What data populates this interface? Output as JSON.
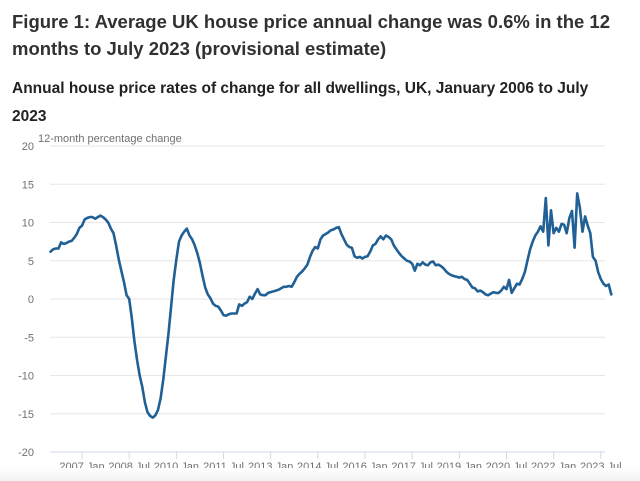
{
  "header": {
    "title": "Figure 1: Average UK house price annual change was 0.6% in the 12 months to July 2023 (provisional estimate)",
    "subtitle": "Annual house price rates of change for all dwellings, UK, January 2006 to July 2023"
  },
  "colors": {
    "line": "#206095",
    "grid": "#e6e6e6",
    "axis": "#cfd8ea",
    "tick_text": "#707071"
  },
  "chart_data": {
    "type": "line",
    "title": "Annual house price rates of change for all dwellings, UK, January 2006 to July 2023",
    "xlabel": "",
    "ylabel": "12-month percentage change",
    "ylim": [
      -20,
      20
    ],
    "yticks": [
      20,
      15,
      10,
      5,
      0,
      -5,
      -10,
      -15,
      -20
    ],
    "ytick_labels": [
      "20",
      "15",
      "10",
      "5",
      "0",
      "-5",
      "-10",
      "-15",
      "-20"
    ],
    "xtick_labels": [
      "2007 Jan",
      "2008 Jul",
      "2010 Jan",
      "2011 Jul",
      "2013 Jan",
      "2014 Jul",
      "2016 Jan",
      "2017 Jul",
      "2019 Jan",
      "2020 Jul",
      "2022 Jan",
      "2023 Jul"
    ],
    "xtick_month_index": [
      12,
      30,
      48,
      66,
      84,
      102,
      120,
      138,
      156,
      174,
      192,
      210
    ],
    "x_start": "2006 Jan",
    "x_end": "2023 Jul",
    "grid": true,
    "legend": "none",
    "series": [
      {
        "name": "12-month percentage change",
        "values": [
          6.2,
          6.5,
          6.6,
          6.6,
          7.4,
          7.2,
          7.3,
          7.5,
          7.6,
          8.0,
          8.5,
          9.3,
          9.6,
          10.4,
          10.6,
          10.7,
          10.7,
          10.5,
          10.7,
          10.9,
          10.7,
          10.4,
          10.0,
          9.2,
          8.6,
          7.0,
          5.2,
          3.7,
          2.2,
          0.5,
          0.0,
          -2.5,
          -5.5,
          -8.0,
          -10.0,
          -11.5,
          -13.5,
          -14.8,
          -15.3,
          -15.5,
          -15.2,
          -14.5,
          -13.0,
          -10.5,
          -7.5,
          -4.5,
          -1.0,
          2.5,
          5.2,
          7.5,
          8.3,
          8.8,
          9.2,
          8.3,
          7.8,
          7.0,
          6.0,
          4.7,
          3.0,
          1.5,
          0.6,
          0.1,
          -0.6,
          -0.9,
          -1.0,
          -1.5,
          -2.1,
          -2.2,
          -2.0,
          -1.9,
          -1.9,
          -1.9,
          -0.7,
          -0.9,
          -0.6,
          -0.4,
          0.3,
          0.0,
          0.7,
          1.3,
          0.6,
          0.5,
          0.5,
          0.8,
          0.9,
          1.0,
          1.1,
          1.2,
          1.4,
          1.6,
          1.6,
          1.7,
          1.6,
          2.2,
          2.9,
          3.3,
          3.6,
          4.0,
          4.5,
          5.5,
          6.3,
          6.8,
          6.6,
          7.8,
          8.3,
          8.5,
          8.7,
          9.0,
          9.1,
          9.3,
          9.4,
          8.5,
          7.8,
          7.1,
          6.8,
          6.7,
          5.6,
          5.4,
          5.5,
          5.3,
          5.5,
          5.6,
          6.2,
          7.0,
          7.2,
          7.8,
          8.2,
          7.8,
          8.3,
          8.1,
          7.8,
          7.0,
          6.5,
          6.0,
          5.6,
          5.3,
          5.0,
          4.9,
          4.6,
          3.7,
          4.6,
          4.4,
          4.8,
          4.5,
          4.4,
          4.8,
          4.9,
          4.4,
          4.5,
          4.3,
          4.0,
          3.6,
          3.3,
          3.1,
          3.0,
          2.9,
          2.8,
          2.9,
          2.6,
          2.5,
          2.0,
          1.5,
          1.4,
          1.0,
          1.1,
          0.9,
          0.6,
          0.5,
          0.7,
          0.9,
          0.8,
          0.8,
          1.1,
          1.6,
          1.3,
          2.5,
          0.8,
          1.4,
          2.0,
          1.9,
          2.6,
          3.5,
          5.0,
          6.5,
          7.5,
          8.3,
          8.8,
          9.5,
          8.8,
          13.2,
          7.0,
          11.6,
          8.6,
          9.3,
          8.8,
          9.8,
          9.7,
          8.6,
          10.6,
          11.5,
          6.7,
          13.8,
          12.0,
          8.8,
          10.8,
          9.6,
          8.6,
          5.5,
          5.0,
          3.5,
          2.6,
          2.0,
          1.7,
          1.9,
          0.6
        ]
      }
    ]
  }
}
